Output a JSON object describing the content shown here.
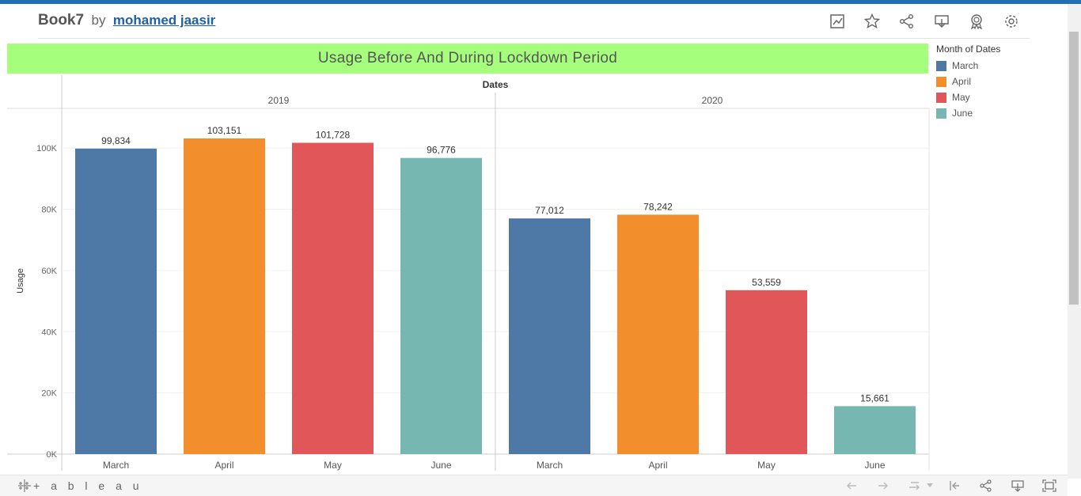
{
  "header": {
    "workbook": "Book7",
    "by": "by",
    "author": "mohamed jaasir",
    "icons": [
      "analytics-icon",
      "star-icon",
      "share-icon",
      "download-icon",
      "badge-icon",
      "settings-icon"
    ]
  },
  "chart_data": {
    "type": "bar",
    "title": "Usage Before And During Lockdown Period",
    "column_header": "Dates",
    "ylabel": "Usage",
    "ylim": [
      0,
      110000
    ],
    "yticks": [
      "0K",
      "20K",
      "40K",
      "60K",
      "80K",
      "100K"
    ],
    "grid": true,
    "legend_position": "right",
    "legend_title": "Month of Dates",
    "legend": [
      {
        "name": "March",
        "color": "#4e79a7"
      },
      {
        "name": "April",
        "color": "#f28e2b"
      },
      {
        "name": "May",
        "color": "#e15759"
      },
      {
        "name": "June",
        "color": "#76b7b2"
      }
    ],
    "panels": [
      {
        "label": "2019",
        "categories": [
          "March",
          "April",
          "May",
          "June"
        ],
        "values": [
          99834,
          103151,
          101728,
          96776
        ],
        "data_labels": [
          "99,834",
          "103,151",
          "101,728",
          "96,776"
        ]
      },
      {
        "label": "2020",
        "categories": [
          "March",
          "April",
          "May",
          "June"
        ],
        "values": [
          77012,
          78242,
          53559,
          15661
        ],
        "data_labels": [
          "77,012",
          "78,242",
          "53,559",
          "15,661"
        ]
      }
    ]
  },
  "footer": {
    "logo": "+ a b l e a u",
    "icons": [
      "undo-icon",
      "redo-icon",
      "revert-icon",
      "revert-dropdown-icon",
      "reset-icon",
      "share-icon",
      "download-icon",
      "fullscreen-icon"
    ]
  }
}
